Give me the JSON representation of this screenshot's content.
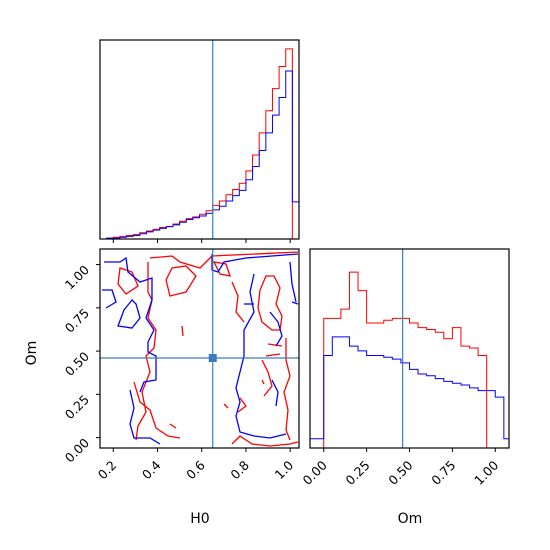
{
  "chart_data": {
    "type": "corner",
    "parameters": [
      "H0",
      "Om"
    ],
    "truth": {
      "H0": 0.65,
      "Om": 0.46
    },
    "colors": {
      "series_a": "#ff0000",
      "series_b": "#0000ff",
      "truth": "#3a7dbf",
      "frame": "#000000"
    },
    "panels": [
      {
        "id": "hist-H0",
        "type": "step-histogram",
        "xlim": [
          0.14,
          1.04
        ],
        "bin_edges": [
          0.14,
          0.17,
          0.2,
          0.23,
          0.26,
          0.29,
          0.32,
          0.35,
          0.38,
          0.41,
          0.44,
          0.47,
          0.5,
          0.53,
          0.56,
          0.59,
          0.62,
          0.65,
          0.68,
          0.71,
          0.74,
          0.77,
          0.8,
          0.83,
          0.86,
          0.89,
          0.92,
          0.95,
          0.98,
          1.01,
          1.04
        ],
        "series": [
          {
            "color": "red",
            "values": [
              0,
              1,
              2,
              3,
              4,
              5,
              7,
              9,
              11,
              13,
              14,
              17,
              20,
              23,
              25,
              28,
              32,
              38,
              43,
              50,
              56,
              63,
              77,
              95,
              120,
              145,
              170,
              195,
              215,
              0
            ]
          },
          {
            "color": "blue",
            "values": [
              0,
              1,
              1,
              2,
              3,
              4,
              6,
              8,
              10,
              12,
              14,
              16,
              19,
              22,
              24,
              26,
              29,
              33,
              37,
              43,
              49,
              55,
              67,
              82,
              100,
              120,
              140,
              160,
              190,
              42
            ]
          }
        ]
      },
      {
        "id": "contour-H0-Om",
        "type": "contour",
        "xlim": [
          0.14,
          1.04
        ],
        "ylim": [
          -0.06,
          1.09
        ],
        "x_ticks": [
          "0.2",
          "0.4",
          "0.6",
          "0.8",
          "1.0"
        ],
        "y_ticks": [
          "0.00",
          "0.25",
          "0.50",
          "0.75",
          "1.00"
        ],
        "xlabel": "H0",
        "ylabel": "Om"
      },
      {
        "id": "hist-Om",
        "type": "step-histogram",
        "xlim": [
          -0.08,
          1.08
        ],
        "x_ticks": [
          "0.00",
          "0.25",
          "0.50",
          "0.75",
          "1.00"
        ],
        "xlabel": "Om",
        "bin_edges": [
          -0.08,
          -0.05,
          0.0,
          0.05,
          0.1,
          0.15,
          0.2,
          0.25,
          0.3,
          0.35,
          0.4,
          0.45,
          0.5,
          0.55,
          0.6,
          0.65,
          0.7,
          0.75,
          0.8,
          0.85,
          0.9,
          0.95,
          1.0,
          1.05,
          1.08
        ],
        "series": [
          {
            "color": "red",
            "values": [
              0,
              0,
              140,
              140,
              150,
              190,
              170,
              135,
              135,
              138,
              140,
              140,
              135,
              130,
              128,
              125,
              118,
              130,
              110,
              108,
              100,
              0,
              0,
              0
            ]
          },
          {
            "color": "blue",
            "values": [
              10,
              10,
              100,
              120,
              120,
              110,
              105,
              100,
              100,
              98,
              96,
              92,
              85,
              80,
              78,
              75,
              72,
              70,
              68,
              65,
              62,
              62,
              55,
              10
            ]
          }
        ]
      }
    ]
  }
}
